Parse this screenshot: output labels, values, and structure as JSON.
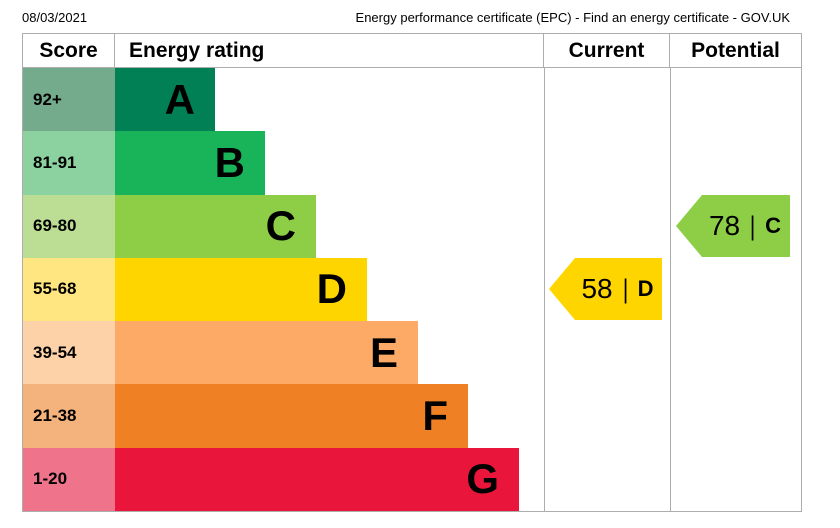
{
  "print_header": {
    "date": "08/03/2021",
    "title": "Energy performance certificate (EPC) - Find an energy certificate - GOV.UK"
  },
  "table": {
    "columns": {
      "score": "Score",
      "rating": "Energy rating",
      "current": "Current",
      "potential": "Potential"
    }
  },
  "bands": [
    {
      "score": "92+",
      "letter": "A",
      "color": "#008054",
      "score_color": "#74ab8d"
    },
    {
      "score": "81-91",
      "letter": "B",
      "color": "#19b459",
      "score_color": "#8cd2a0"
    },
    {
      "score": "69-80",
      "letter": "C",
      "color": "#8dce46",
      "score_color": "#bcdd94"
    },
    {
      "score": "55-68",
      "letter": "D",
      "color": "#ffd500",
      "score_color": "#ffe680"
    },
    {
      "score": "39-54",
      "letter": "E",
      "color": "#fcaa65",
      "score_color": "#fdd2a8"
    },
    {
      "score": "21-38",
      "letter": "F",
      "color": "#ef8023",
      "score_color": "#f4b27c"
    },
    {
      "score": "1-20",
      "letter": "G",
      "color": "#e9153b",
      "score_color": "#f0738c"
    }
  ],
  "current": {
    "value": "58",
    "separator": "|",
    "letter": "D",
    "color": "#ffd500"
  },
  "potential": {
    "value": "78",
    "separator": "|",
    "letter": "C",
    "color": "#8dce46"
  },
  "chart_data": {
    "type": "bar",
    "title": "Energy performance certificate (EPC) rating chart",
    "categories": [
      "A",
      "B",
      "C",
      "D",
      "E",
      "F",
      "G"
    ],
    "score_ranges": [
      "92+",
      "81-91",
      "69-80",
      "55-68",
      "39-54",
      "21-38",
      "1-20"
    ],
    "series": [
      {
        "name": "band_bar_relative_length",
        "values": [
          0.25,
          0.37,
          0.5,
          0.62,
          0.75,
          0.87,
          1.0
        ]
      }
    ],
    "band_colors": [
      "#008054",
      "#19b459",
      "#8dce46",
      "#ffd500",
      "#fcaa65",
      "#ef8023",
      "#e9153b"
    ],
    "columns": [
      "Score",
      "Energy rating",
      "Current",
      "Potential"
    ],
    "current": {
      "score": 58,
      "band": "D"
    },
    "potential": {
      "score": 78,
      "band": "C"
    },
    "layout": {
      "orientation": "horizontal",
      "grid": false,
      "legend": "none"
    }
  }
}
